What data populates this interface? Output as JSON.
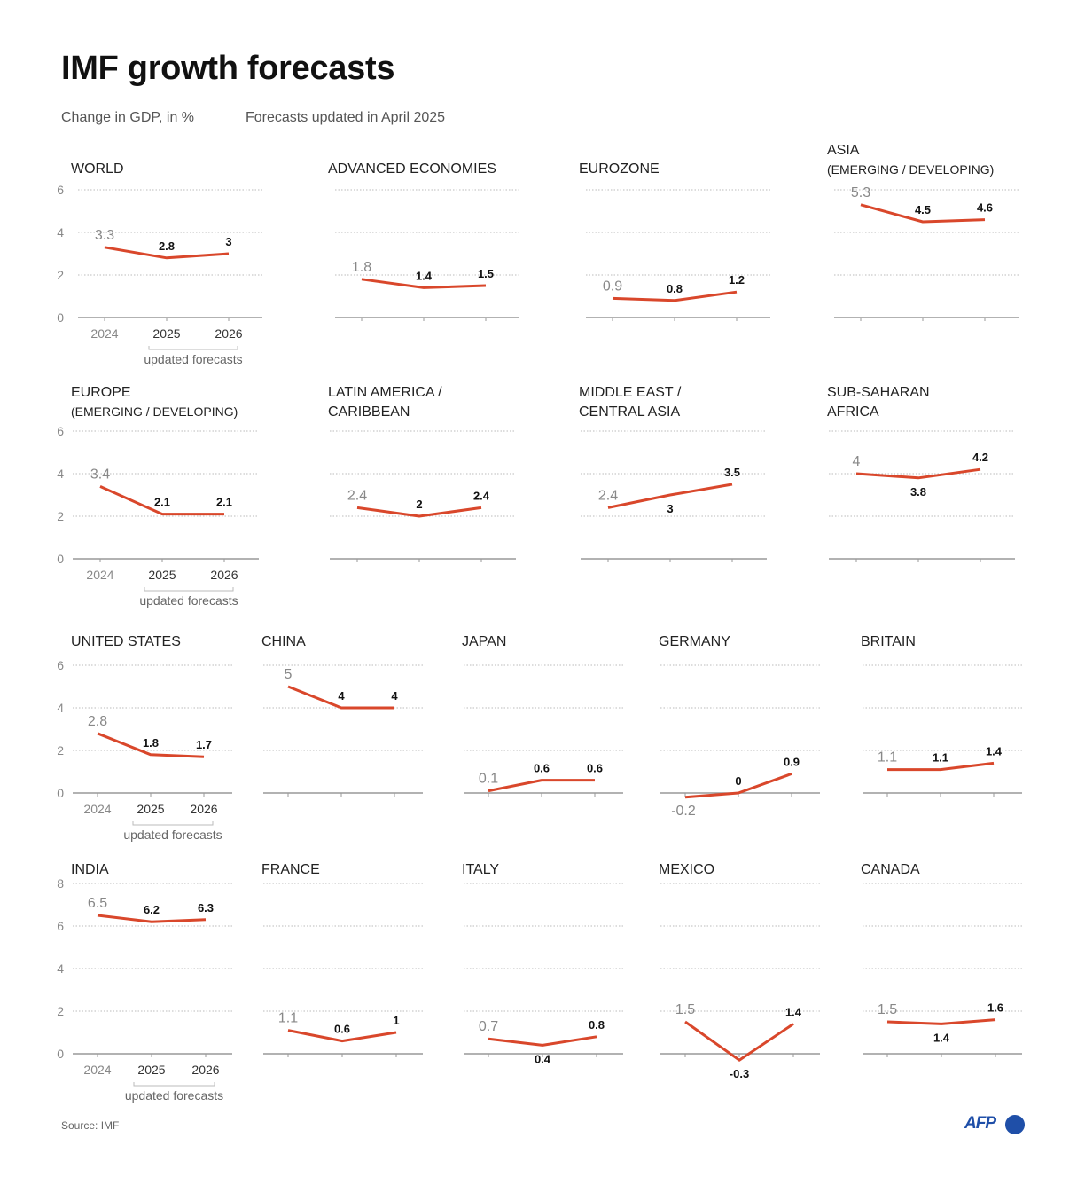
{
  "title": "IMF growth forecasts",
  "subtitle": "Change in GDP, in %",
  "note": "Forecasts updated in April 2025",
  "source": "Source: IMF",
  "logo": "AFP",
  "colors": {
    "line": "#d9472b",
    "grid": "#bbbbbb",
    "axis": "#999999",
    "text": "#222222",
    "muted": "#888888",
    "logo": "#1f4fa8"
  },
  "bracket_label": "updated forecasts",
  "chart_data": [
    {
      "type": "line",
      "title": [
        "WORLD"
      ],
      "categories": [
        "2024",
        "2025",
        "2026"
      ],
      "values": [
        3.3,
        2.8,
        3.0
      ],
      "yticks": [
        0,
        2,
        4,
        6
      ],
      "ylim": [
        0,
        6
      ]
    },
    {
      "type": "line",
      "title": [
        "ADVANCED ECONOMIES"
      ],
      "categories": [
        "2024",
        "2025",
        "2026"
      ],
      "values": [
        1.8,
        1.4,
        1.5
      ],
      "ylim": [
        0,
        6
      ]
    },
    {
      "type": "line",
      "title": [
        "EUROZONE"
      ],
      "categories": [
        "2024",
        "2025",
        "2026"
      ],
      "values": [
        0.9,
        0.8,
        1.2
      ],
      "ylim": [
        0,
        6
      ]
    },
    {
      "type": "line",
      "title": [
        "ASIA",
        "(EMERGING / DEVELOPING)"
      ],
      "categories": [
        "2024",
        "2025",
        "2026"
      ],
      "values": [
        5.3,
        4.5,
        4.6
      ],
      "ylim": [
        0,
        6
      ]
    },
    {
      "type": "line",
      "title": [
        "EUROPE",
        "(EMERGING / DEVELOPING)"
      ],
      "categories": [
        "2024",
        "2025",
        "2026"
      ],
      "values": [
        3.4,
        2.1,
        2.1
      ],
      "yticks": [
        0,
        2,
        4,
        6
      ],
      "ylim": [
        0,
        6
      ]
    },
    {
      "type": "line",
      "title": [
        "LATIN AMERICA /",
        "CARIBBEAN"
      ],
      "categories": [
        "2024",
        "2025",
        "2026"
      ],
      "values": [
        2.4,
        2.0,
        2.4
      ],
      "ylim": [
        0,
        6
      ]
    },
    {
      "type": "line",
      "title": [
        "MIDDLE EAST /",
        "CENTRAL ASIA"
      ],
      "categories": [
        "2024",
        "2025",
        "2026"
      ],
      "values": [
        2.4,
        3.0,
        3.5
      ],
      "ylim": [
        0,
        6
      ]
    },
    {
      "type": "line",
      "title": [
        "SUB-SAHARAN",
        "AFRICA"
      ],
      "categories": [
        "2024",
        "2025",
        "2026"
      ],
      "values": [
        4.0,
        3.8,
        4.2
      ],
      "ylim": [
        0,
        6
      ]
    },
    {
      "type": "line",
      "title": [
        "UNITED STATES"
      ],
      "categories": [
        "2024",
        "2025",
        "2026"
      ],
      "values": [
        2.8,
        1.8,
        1.7
      ],
      "yticks": [
        0,
        2,
        4,
        6
      ],
      "ylim": [
        0,
        6
      ]
    },
    {
      "type": "line",
      "title": [
        "CHINA"
      ],
      "categories": [
        "2024",
        "2025",
        "2026"
      ],
      "values": [
        5.0,
        4.0,
        4.0
      ],
      "ylim": [
        0,
        6
      ]
    },
    {
      "type": "line",
      "title": [
        "JAPAN"
      ],
      "categories": [
        "2024",
        "2025",
        "2026"
      ],
      "values": [
        0.1,
        0.6,
        0.6
      ],
      "ylim": [
        0,
        6
      ]
    },
    {
      "type": "line",
      "title": [
        "GERMANY"
      ],
      "categories": [
        "2024",
        "2025",
        "2026"
      ],
      "values": [
        -0.2,
        0,
        0.9
      ],
      "ylim": [
        0,
        6
      ]
    },
    {
      "type": "line",
      "title": [
        "BRITAIN"
      ],
      "categories": [
        "2024",
        "2025",
        "2026"
      ],
      "values": [
        1.1,
        1.1,
        1.4
      ],
      "ylim": [
        0,
        6
      ]
    },
    {
      "type": "line",
      "title": [
        "INDIA"
      ],
      "categories": [
        "2024",
        "2025",
        "2026"
      ],
      "values": [
        6.5,
        6.2,
        6.3
      ],
      "yticks": [
        0,
        2,
        4,
        6,
        8
      ],
      "ylim": [
        0,
        8
      ]
    },
    {
      "type": "line",
      "title": [
        "FRANCE"
      ],
      "categories": [
        "2024",
        "2025",
        "2026"
      ],
      "values": [
        1.1,
        0.6,
        1.0
      ],
      "ylim": [
        0,
        8
      ]
    },
    {
      "type": "line",
      "title": [
        "ITALY"
      ],
      "categories": [
        "2024",
        "2025",
        "2026"
      ],
      "values": [
        0.7,
        0.4,
        0.8
      ],
      "ylim": [
        0,
        8
      ]
    },
    {
      "type": "line",
      "title": [
        "MEXICO"
      ],
      "categories": [
        "2024",
        "2025",
        "2026"
      ],
      "values": [
        1.5,
        -0.3,
        1.4
      ],
      "ylim": [
        0,
        8
      ]
    },
    {
      "type": "line",
      "title": [
        "CANADA"
      ],
      "categories": [
        "2024",
        "2025",
        "2026"
      ],
      "values": [
        1.5,
        1.4,
        1.6
      ],
      "ylim": [
        0,
        8
      ]
    }
  ]
}
